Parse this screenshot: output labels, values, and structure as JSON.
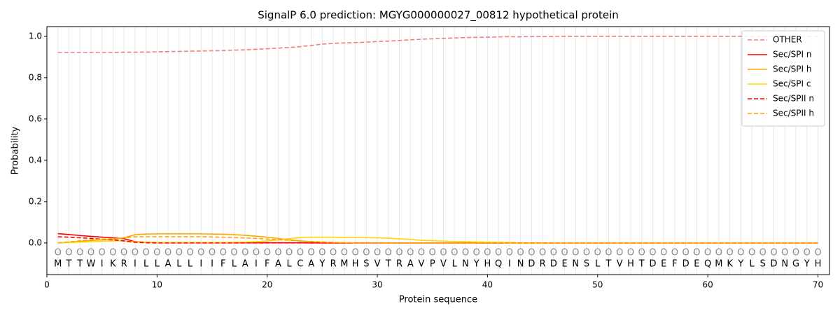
{
  "chart_data": {
    "type": "line",
    "title": "SignalP 6.0 prediction: MGYG000000027_00812 hypothetical protein",
    "x_label": "Protein sequence",
    "y_label": "Probability",
    "xlim": [
      0,
      71.05
    ],
    "ylim": [
      -0.153,
      1.047
    ],
    "xticks": [
      0,
      10,
      20,
      30,
      40,
      50,
      60,
      70
    ],
    "yticks": [
      {
        "value": 0,
        "label": "0.0"
      },
      {
        "value": 0.2,
        "label": "0.2"
      },
      {
        "value": 0.4,
        "label": "0.4"
      },
      {
        "value": 0.6,
        "label": "0.6"
      },
      {
        "value": 0.8,
        "label": "0.8"
      },
      {
        "value": 1.0,
        "label": "1.0"
      }
    ],
    "grid": true,
    "legend": "upper right",
    "x": [
      1,
      2,
      3,
      4,
      5,
      6,
      7,
      8,
      9,
      10,
      11,
      12,
      13,
      14,
      15,
      16,
      17,
      18,
      19,
      20,
      21,
      22,
      23,
      24,
      25,
      26,
      27,
      28,
      29,
      30,
      31,
      32,
      33,
      34,
      35,
      36,
      37,
      38,
      39,
      40,
      41,
      42,
      43,
      44,
      45,
      46,
      47,
      48,
      49,
      50,
      51,
      52,
      53,
      54,
      55,
      56,
      57,
      58,
      59,
      60,
      61,
      62,
      63,
      64,
      65,
      66,
      67,
      68,
      69,
      70
    ],
    "sequence": [
      "M",
      "T",
      "T",
      "W",
      "I",
      "K",
      "R",
      "I",
      "L",
      "L",
      "A",
      "L",
      "L",
      "I",
      "I",
      "F",
      "L",
      "A",
      "I",
      "F",
      "A",
      "L",
      "C",
      "A",
      "Y",
      "R",
      "M",
      "H",
      "S",
      "V",
      "T",
      "R",
      "A",
      "V",
      "P",
      "V",
      "L",
      "N",
      "Y",
      "H",
      "Q",
      "I",
      "N",
      "D",
      "R",
      "D",
      "E",
      "N",
      "S",
      "L",
      "T",
      "V",
      "H",
      "T",
      "D",
      "E",
      "F",
      "D",
      "E",
      "Q",
      "M",
      "K",
      "Y",
      "L",
      "S",
      "D",
      "N",
      "G",
      "Y",
      "H"
    ],
    "predicted_labels": [
      "O",
      "O",
      "O",
      "O",
      "O",
      "O",
      "O",
      "O",
      "O",
      "O",
      "O",
      "O",
      "O",
      "O",
      "O",
      "O",
      "O",
      "O",
      "O",
      "O",
      "O",
      "O",
      "O",
      "O",
      "O",
      "O",
      "O",
      "O",
      "O",
      "O",
      "O",
      "O",
      "O",
      "O",
      "O",
      "O",
      "O",
      "O",
      "O",
      "O",
      "O",
      "O",
      "O",
      "O",
      "O",
      "O",
      "O",
      "O",
      "O",
      "O",
      "O",
      "O",
      "O",
      "O",
      "O",
      "O",
      "O",
      "O",
      "O",
      "O",
      "O",
      "O",
      "O",
      "O",
      "O",
      "O",
      "O",
      "O",
      "O",
      "O"
    ],
    "series": [
      {
        "name": "OTHER",
        "color": "#f08080",
        "dashed": true,
        "values": [
          0.922,
          0.922,
          0.922,
          0.922,
          0.922,
          0.922,
          0.923,
          0.923,
          0.924,
          0.925,
          0.926,
          0.927,
          0.928,
          0.929,
          0.93,
          0.931,
          0.933,
          0.935,
          0.937,
          0.94,
          0.943,
          0.946,
          0.95,
          0.956,
          0.962,
          0.966,
          0.968,
          0.97,
          0.972,
          0.975,
          0.977,
          0.98,
          0.983,
          0.986,
          0.988,
          0.99,
          0.992,
          0.994,
          0.995,
          0.996,
          0.997,
          0.998,
          0.998,
          0.999,
          0.999,
          0.999,
          1.0,
          1.0,
          1.0,
          1.0,
          1.0,
          1.0,
          1.0,
          1.0,
          1.0,
          1.0,
          1.0,
          1.0,
          1.0,
          1.0,
          1.0,
          1.0,
          1.0,
          1.0,
          1.0,
          1.0,
          1.0,
          1.0,
          1.0,
          1.0
        ]
      },
      {
        "name": "Sec/SPI n",
        "color": "#ff0000",
        "dashed": false,
        "values": [
          0.045,
          0.041,
          0.036,
          0.032,
          0.028,
          0.025,
          0.021,
          0.006,
          0.003,
          0.002,
          0.001,
          0.001,
          0.001,
          0.001,
          0.001,
          0.001,
          0.001,
          0.001,
          0.001,
          0.001,
          0.001,
          0.001,
          0.001,
          0,
          0,
          0,
          0,
          0,
          0,
          0,
          0,
          0,
          0,
          0,
          0,
          0,
          0,
          0,
          0,
          0,
          0,
          0,
          0,
          0,
          0,
          0,
          0,
          0,
          0,
          0,
          0,
          0,
          0,
          0,
          0,
          0,
          0,
          0,
          0,
          0,
          0,
          0,
          0,
          0,
          0,
          0,
          0,
          0,
          0,
          0
        ]
      },
      {
        "name": "Sec/SPI h",
        "color": "#ffa500",
        "dashed": false,
        "values": [
          0,
          0.003,
          0.008,
          0.012,
          0.015,
          0.017,
          0.025,
          0.04,
          0.043,
          0.044,
          0.044,
          0.044,
          0.044,
          0.044,
          0.043,
          0.042,
          0.04,
          0.037,
          0.033,
          0.028,
          0.022,
          0.015,
          0.01,
          0.006,
          0.003,
          0.002,
          0.001,
          0,
          0,
          0,
          0,
          0,
          0,
          0,
          0,
          0,
          0,
          0,
          0,
          0,
          0,
          0,
          0,
          0,
          0,
          0,
          0,
          0,
          0,
          0,
          0,
          0,
          0,
          0,
          0,
          0,
          0,
          0,
          0,
          0,
          0,
          0,
          0,
          0,
          0,
          0,
          0,
          0,
          0,
          0
        ]
      },
      {
        "name": "Sec/SPI c",
        "color": "#ffd700",
        "dashed": false,
        "values": [
          0,
          0.002,
          0.004,
          0.006,
          0.008,
          0.01,
          0.01,
          0.005,
          0.003,
          0.002,
          0.002,
          0.002,
          0.002,
          0.002,
          0.002,
          0.002,
          0.003,
          0.004,
          0.006,
          0.01,
          0.015,
          0.02,
          0.027,
          0.028,
          0.028,
          0.028,
          0.027,
          0.027,
          0.026,
          0.025,
          0.023,
          0.02,
          0.017,
          0.013,
          0.011,
          0.009,
          0.007,
          0.006,
          0.005,
          0.004,
          0.003,
          0.002,
          0.001,
          0.001,
          0.001,
          0,
          0,
          0,
          0,
          0,
          0,
          0,
          0,
          0,
          0,
          0,
          0,
          0,
          0,
          0,
          0,
          0,
          0,
          0,
          0,
          0,
          0,
          0,
          0,
          0
        ]
      },
      {
        "name": "Sec/SPII n",
        "color": "#ff0000",
        "dashed": true,
        "values": [
          0.03,
          0.028,
          0.025,
          0.022,
          0.018,
          0.015,
          0.01,
          0.003,
          0.001,
          0,
          0,
          0,
          0,
          0,
          0,
          0,
          0,
          0,
          0,
          0,
          0,
          0,
          0,
          0,
          0,
          0,
          0,
          0,
          0,
          0,
          0,
          0,
          0,
          0,
          0,
          0,
          0,
          0,
          0,
          0,
          0,
          0,
          0,
          0,
          0,
          0,
          0,
          0,
          0,
          0,
          0,
          0,
          0,
          0,
          0,
          0,
          0,
          0,
          0,
          0,
          0,
          0,
          0,
          0,
          0,
          0,
          0,
          0,
          0,
          0
        ]
      },
      {
        "name": "Sec/SPII h",
        "color": "#ffa500",
        "dashed": true,
        "values": [
          0,
          0.005,
          0.01,
          0.015,
          0.018,
          0.02,
          0.025,
          0.03,
          0.03,
          0.03,
          0.03,
          0.03,
          0.03,
          0.03,
          0.029,
          0.028,
          0.026,
          0.024,
          0.022,
          0.019,
          0.016,
          0.013,
          0.01,
          0.007,
          0.005,
          0.003,
          0.002,
          0.001,
          0.001,
          0.001,
          0,
          0,
          0,
          0,
          0,
          0,
          0,
          0,
          0,
          0,
          0,
          0,
          0,
          0,
          0,
          0,
          0,
          0,
          0,
          0,
          0,
          0,
          0,
          0,
          0,
          0,
          0,
          0,
          0,
          0,
          0,
          0,
          0,
          0,
          0,
          0,
          0,
          0,
          0,
          0
        ]
      }
    ]
  }
}
